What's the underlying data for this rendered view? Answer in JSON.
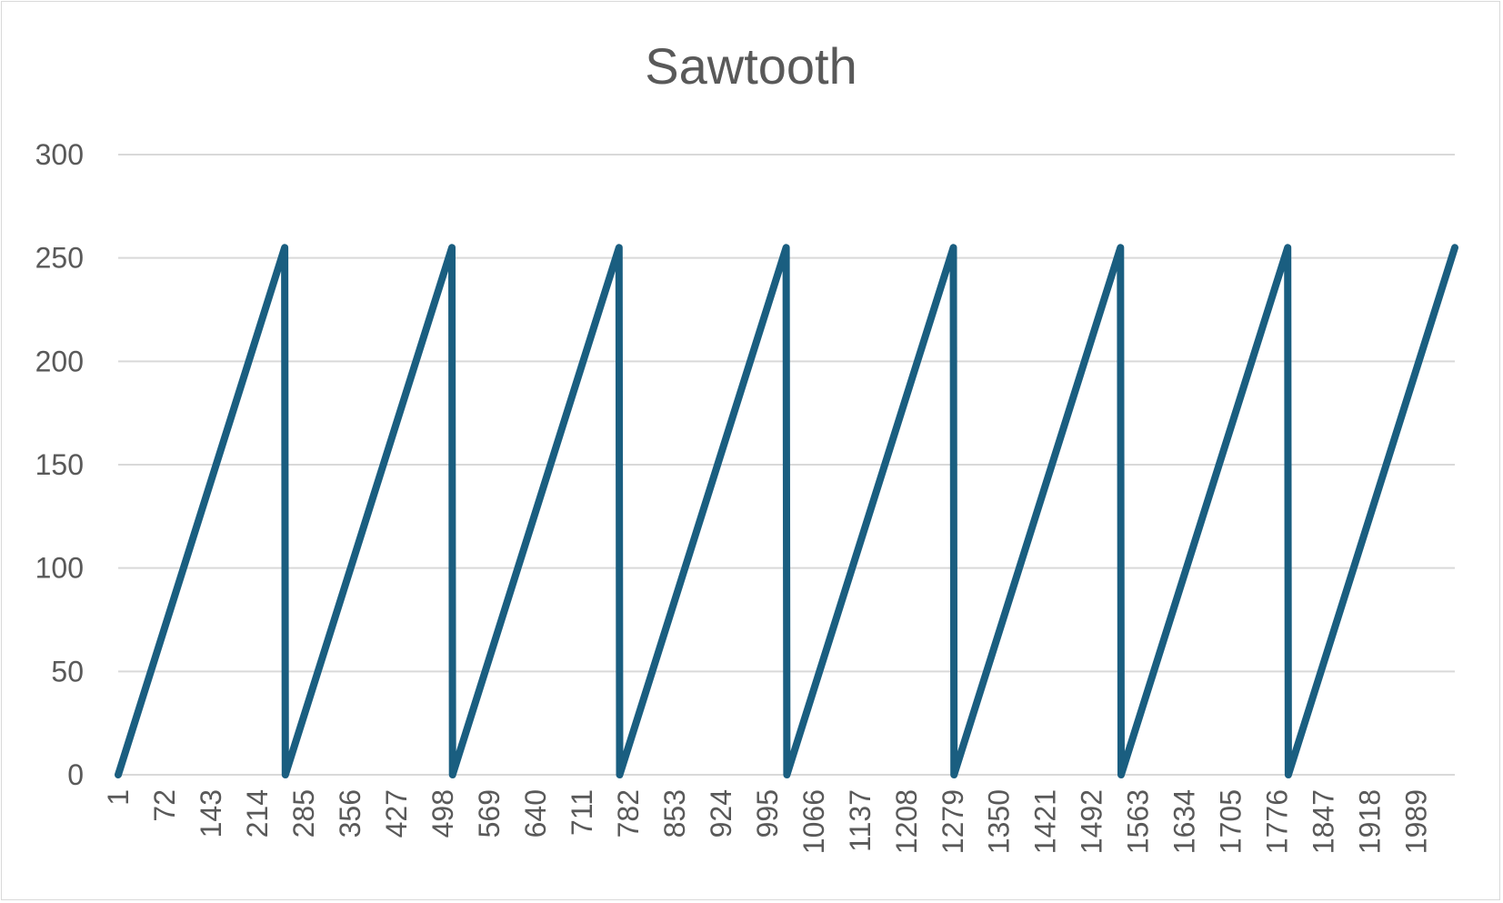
{
  "chart_data": {
    "type": "line",
    "title": "Sawtooth",
    "xlabel": "",
    "ylabel": "",
    "ylim": [
      0,
      300
    ],
    "y_ticks": [
      0,
      50,
      100,
      150,
      200,
      250,
      300
    ],
    "x_ticks": [
      1,
      72,
      143,
      214,
      285,
      356,
      427,
      498,
      569,
      640,
      711,
      782,
      853,
      924,
      995,
      1066,
      1137,
      1208,
      1279,
      1350,
      1421,
      1492,
      1563,
      1634,
      1705,
      1776,
      1847,
      1918,
      1989
    ],
    "x_range": [
      1,
      2048
    ],
    "grid": "horizontal",
    "legend": "none",
    "series": [
      {
        "color": "#1a5e80",
        "x": [
          1,
          256,
          257,
          512,
          513,
          768,
          769,
          1024,
          1025,
          1280,
          1281,
          1536,
          1537,
          1792,
          1793,
          2048
        ],
        "y": [
          0,
          255,
          0,
          255,
          0,
          255,
          0,
          255,
          0,
          255,
          0,
          255,
          0,
          255,
          0,
          255
        ]
      }
    ]
  }
}
